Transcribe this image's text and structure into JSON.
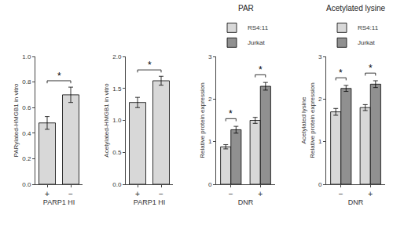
{
  "chart_data": [
    {
      "type": "bar",
      "categories": [
        "+",
        "−"
      ],
      "xlabel": "PARP1 HI",
      "ylabel": "PARylated-HMGB1 in vitro",
      "values": [
        0.48,
        0.7
      ],
      "errors": [
        0.05,
        0.06
      ],
      "color": "#d8d8d8",
      "ylim": [
        0.0,
        1.0
      ],
      "yticks": [
        {
          "value": 0.0,
          "label": "0.0"
        },
        0.2,
        0.4,
        0.6,
        0.8,
        {
          "value": 1.0,
          "label": "1.0"
        }
      ],
      "grid": false,
      "annotations": [
        {
          "text": "*",
          "from": "+",
          "to": "−"
        }
      ]
    },
    {
      "type": "bar",
      "categories": [
        "+",
        "−"
      ],
      "xlabel": "PARP1 HI",
      "ylabel": "Acetylated-HMGB1 in vitro",
      "values": [
        1.28,
        1.62
      ],
      "errors": [
        0.08,
        0.07
      ],
      "color": "#d8d8d8",
      "ylim": [
        0.0,
        2.0
      ],
      "yticks": [
        {
          "value": 0.0,
          "label": "0.0"
        },
        0.5,
        {
          "value": 1.0,
          "label": "1.0"
        },
        1.5,
        {
          "value": 2.0,
          "label": "2.0"
        }
      ],
      "grid": false,
      "annotations": [
        {
          "text": "*",
          "from": "+",
          "to": "−"
        }
      ]
    },
    {
      "type": "bar",
      "title": "PAR",
      "xlabel": "DNR",
      "ylabel": "Relative protein expression",
      "categories": [
        "−",
        "+"
      ],
      "series": [
        {
          "name": "RS4:11",
          "color": "#d8d8d8",
          "values": [
            0.88,
            1.5
          ],
          "errors": [
            0.05,
            0.07
          ]
        },
        {
          "name": "Jurkat",
          "color": "#909090",
          "values": [
            1.28,
            2.3
          ],
          "errors": [
            0.08,
            0.09
          ]
        }
      ],
      "ylim": [
        0,
        3
      ],
      "yticks": [
        0,
        1,
        2,
        3
      ],
      "grid": false,
      "legend": "upper left",
      "annotations": [
        {
          "text": "*",
          "category": "−",
          "from": "RS4:11",
          "to": "Jurkat"
        },
        {
          "text": "*",
          "category": "+",
          "from": "RS4:11",
          "to": "Jurkat"
        }
      ]
    },
    {
      "type": "bar",
      "title": "Acetylated lysine",
      "xlabel": "DNR",
      "ylabel": "Acetylated lysine\nRelative protein expression",
      "categories": [
        "−",
        "+"
      ],
      "series": [
        {
          "name": "RS4:11",
          "color": "#d8d8d8",
          "values": [
            1.7,
            1.8
          ],
          "errors": [
            0.08,
            0.07
          ]
        },
        {
          "name": "Jurkat",
          "color": "#909090",
          "values": [
            2.25,
            2.35
          ],
          "errors": [
            0.07,
            0.08
          ]
        }
      ],
      "ylim": [
        0,
        3
      ],
      "yticks": [
        0,
        1,
        2,
        3
      ],
      "grid": false,
      "legend": "upper left",
      "annotations": [
        {
          "text": "*",
          "category": "−",
          "from": "RS4:11",
          "to": "Jurkat"
        },
        {
          "text": "*",
          "category": "+",
          "from": "RS4:11",
          "to": "Jurkat"
        }
      ]
    }
  ]
}
